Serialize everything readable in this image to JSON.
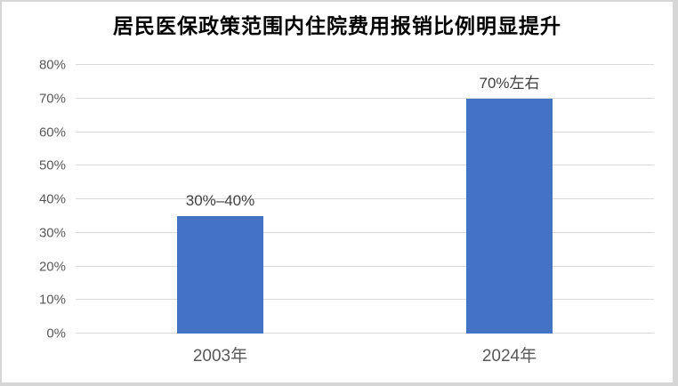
{
  "chart_data": {
    "type": "bar",
    "title": "居民医保政策范围内住院费用报销比例明显提升",
    "categories": [
      "2003年",
      "2024年"
    ],
    "values": [
      35,
      70
    ],
    "bar_labels": [
      "30%–40%",
      "70%左右"
    ],
    "ylim": [
      0,
      80
    ],
    "ytick_step": 10,
    "ytick_labels": [
      "0%",
      "10%",
      "20%",
      "30%",
      "40%",
      "50%",
      "60%",
      "70%",
      "80%"
    ],
    "grid": true,
    "legend": "none",
    "colors": {
      "bar": "#4472C4",
      "gridline": "#d9d9d9",
      "axis_text": "#595959",
      "title_text": "#000000",
      "frame_border": "#d6d6d6"
    }
  }
}
